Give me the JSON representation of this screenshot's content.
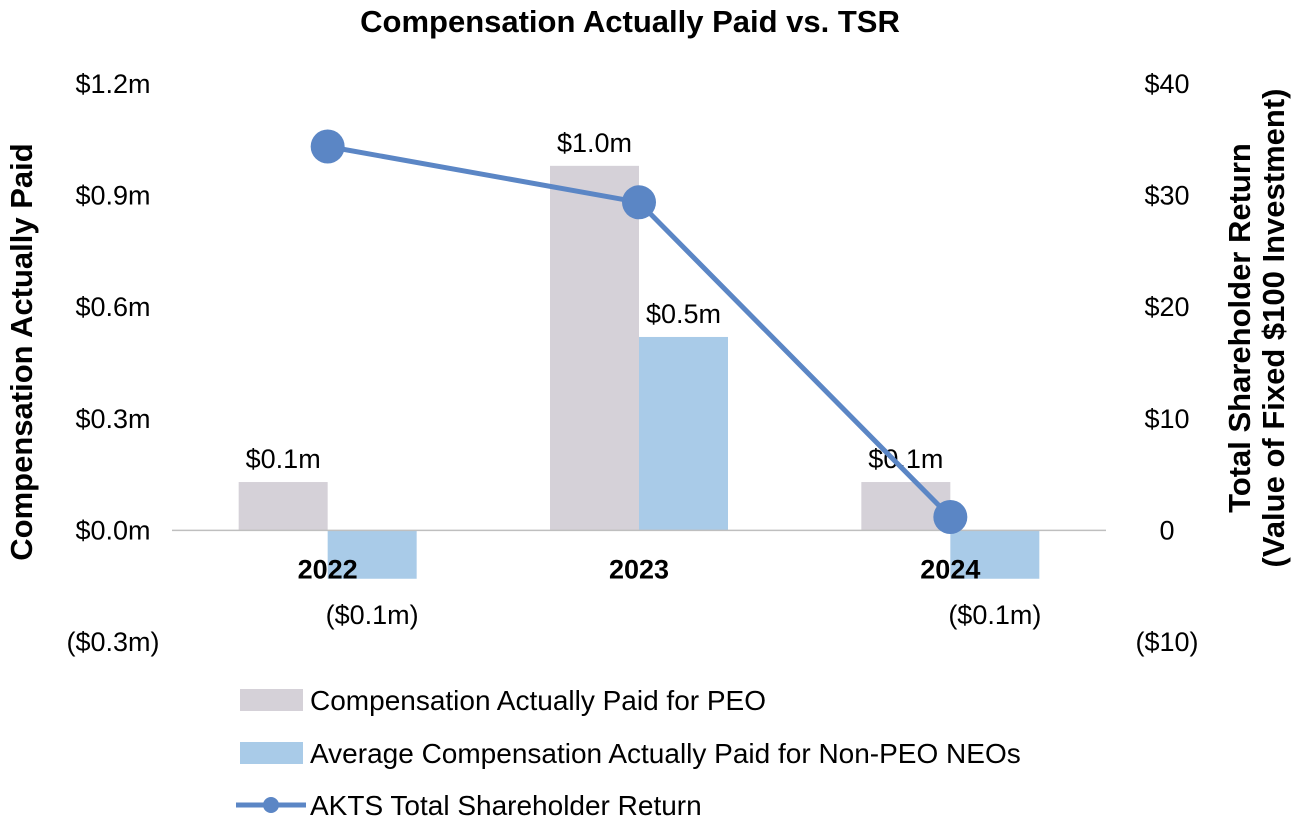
{
  "chart_data": {
    "type": "bar",
    "title": "Compensation Actually Paid vs. TSR",
    "categories": [
      "2022",
      "2023",
      "2024"
    ],
    "y_left": {
      "label": "Compensation Actually Paid",
      "range": [
        -0.3,
        1.2
      ],
      "ticks": [
        {
          "value": 1.2,
          "label": "$1.2m"
        },
        {
          "value": 0.9,
          "label": "$0.9m"
        },
        {
          "value": 0.6,
          "label": "$0.6m"
        },
        {
          "value": 0.3,
          "label": "$0.3m"
        },
        {
          "value": 0.0,
          "label": "$0.0m"
        },
        {
          "value": -0.3,
          "label": "($0.3m)"
        }
      ]
    },
    "y_right": {
      "label_line1": "Total Shareholder Return",
      "label_line2": "(Value of Fixed $100 Investment)",
      "range": [
        -10,
        40
      ],
      "ticks": [
        {
          "value": 40,
          "label": "$40"
        },
        {
          "value": 30,
          "label": "$30"
        },
        {
          "value": 20,
          "label": "$20"
        },
        {
          "value": 10,
          "label": "$10"
        },
        {
          "value": 0,
          "label": "0"
        },
        {
          "value": -10,
          "label": "($10)"
        }
      ]
    },
    "series": [
      {
        "name": "Compensation Actually Paid for PEO",
        "type": "bar",
        "axis": "left",
        "color": "#d5d1d8",
        "values": [
          0.13,
          0.98,
          0.13
        ],
        "labels": [
          "$0.1m",
          "$1.0m",
          "$0.1m"
        ]
      },
      {
        "name": "Average Compensation Actually Paid for Non-PEO NEOs",
        "type": "bar",
        "axis": "left",
        "color": "#a9cbe8",
        "values": [
          -0.13,
          0.52,
          -0.13
        ],
        "labels": [
          "($0.1m)",
          "$0.5m",
          "($0.1m)"
        ]
      },
      {
        "name": "AKTS Total Shareholder Return",
        "type": "line",
        "axis": "right",
        "color": "#5b86c5",
        "values": [
          34.4,
          29.4,
          1.2
        ]
      }
    ],
    "legend_position": "bottom",
    "grid": false
  }
}
